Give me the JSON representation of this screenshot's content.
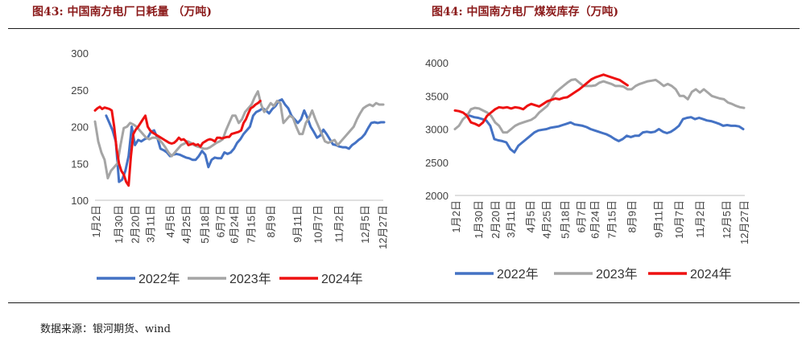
{
  "page": {
    "source": "数据来源：银河期货、wind"
  },
  "chart_data": [
    {
      "type": "line",
      "title": "图43:  中国南方电厂日耗量  （万吨)",
      "xlabel": "",
      "ylabel": "",
      "ylim": [
        100,
        300
      ],
      "yticks": [
        100,
        150,
        200,
        250,
        300
      ],
      "x_range": [
        1,
        362
      ],
      "x_tick_labels": [
        "1月2日",
        "1月30日",
        "2月20日",
        "3月11日",
        "4月5日",
        "4月25日",
        "5月18日",
        "6月7日",
        "6月24日",
        "7月15日",
        "8月9日",
        "9月11日",
        "10月7日",
        "11月2日",
        "12月5日",
        "12月27日"
      ],
      "x_tick_positions": [
        2,
        30,
        51,
        70,
        95,
        115,
        138,
        158,
        175,
        196,
        221,
        254,
        280,
        306,
        339,
        361
      ],
      "grid": false,
      "legend_position": "bottom",
      "series": [
        {
          "name": "2022年",
          "color": "#4472c4",
          "x": [
            15,
            19,
            23,
            27,
            31,
            35,
            39,
            43,
            47,
            51,
            55,
            59,
            63,
            67,
            71,
            75,
            79,
            83,
            87,
            91,
            95,
            99,
            103,
            107,
            111,
            115,
            119,
            123,
            127,
            131,
            135,
            139,
            143,
            147,
            151,
            155,
            159,
            163,
            167,
            171,
            175,
            179,
            183,
            187,
            191,
            195,
            199,
            203,
            207,
            211,
            215,
            219,
            223,
            227,
            231,
            235,
            239,
            243,
            247,
            251,
            255,
            259,
            263,
            267,
            271,
            275,
            279,
            283,
            287,
            291,
            295,
            299,
            303,
            307,
            311,
            315,
            319,
            323,
            327,
            331,
            335,
            339,
            343,
            347,
            351,
            355,
            359,
            363
          ],
          "y": [
            215,
            205,
            195,
            180,
            125,
            128,
            140,
            160,
            200,
            175,
            182,
            180,
            183,
            185,
            193,
            195,
            185,
            170,
            168,
            165,
            160,
            162,
            163,
            162,
            160,
            158,
            157,
            155,
            155,
            160,
            167,
            162,
            145,
            155,
            158,
            157,
            157,
            165,
            163,
            165,
            170,
            178,
            183,
            190,
            195,
            200,
            215,
            220,
            222,
            225,
            222,
            218,
            224,
            228,
            235,
            237,
            230,
            225,
            215,
            210,
            205,
            210,
            222,
            212,
            200,
            193,
            185,
            188,
            196,
            190,
            183,
            176,
            175,
            173,
            172,
            172,
            170,
            175,
            178,
            182,
            185,
            190,
            198,
            205,
            206,
            205,
            206,
            206
          ]
        },
        {
          "name": "2023年",
          "color": "#a5a5a5",
          "x": [
            1,
            5,
            9,
            13,
            17,
            21,
            25,
            29,
            33,
            37,
            41,
            45,
            49,
            53,
            57,
            61,
            65,
            69,
            73,
            77,
            81,
            85,
            89,
            93,
            97,
            101,
            105,
            109,
            113,
            117,
            121,
            125,
            129,
            133,
            137,
            141,
            145,
            149,
            153,
            157,
            161,
            165,
            169,
            173,
            177,
            181,
            185,
            189,
            193,
            197,
            201,
            205,
            209,
            213,
            217,
            221,
            225,
            229,
            233,
            237,
            241,
            245,
            249,
            253,
            257,
            261,
            265,
            269,
            273,
            277,
            281,
            285,
            289,
            293,
            297,
            301,
            305,
            309,
            313,
            317,
            321,
            325,
            329,
            333,
            337,
            341,
            345,
            349,
            353,
            357,
            362
          ],
          "y": [
            207,
            180,
            165,
            155,
            130,
            140,
            145,
            150,
            175,
            198,
            200,
            205,
            203,
            200,
            195,
            190,
            185,
            183,
            185,
            185,
            183,
            178,
            172,
            165,
            160,
            165,
            170,
            175,
            177,
            180,
            178,
            175,
            173,
            172,
            170,
            170,
            172,
            175,
            178,
            180,
            183,
            195,
            205,
            215,
            215,
            205,
            210,
            220,
            225,
            230,
            240,
            248,
            230,
            220,
            225,
            232,
            228,
            235,
            232,
            205,
            210,
            215,
            212,
            200,
            190,
            190,
            205,
            212,
            222,
            210,
            200,
            190,
            180,
            178,
            180,
            182,
            175,
            180,
            185,
            190,
            195,
            200,
            210,
            218,
            225,
            228,
            230,
            228,
            232,
            230,
            230
          ]
        },
        {
          "name": "2024年",
          "color": "#ee1111",
          "x": [
            1,
            4,
            7,
            10,
            13,
            16,
            19,
            22,
            25,
            28,
            31,
            34,
            37,
            40,
            43,
            46,
            49,
            52,
            55,
            58,
            61,
            64,
            67,
            70,
            73,
            76,
            79,
            82,
            85,
            88,
            91,
            94,
            97,
            100,
            103,
            106,
            109,
            112,
            115,
            118,
            121,
            124,
            127,
            130,
            133,
            136,
            139,
            142,
            145,
            148,
            151,
            154,
            157,
            160,
            163,
            166,
            169,
            172,
            175,
            178,
            181,
            184,
            187,
            190,
            193,
            196,
            199,
            202,
            205,
            208
          ],
          "y": [
            222,
            225,
            227,
            224,
            226,
            225,
            224,
            222,
            200,
            170,
            150,
            140,
            135,
            125,
            120,
            160,
            190,
            196,
            200,
            205,
            210,
            215,
            200,
            195,
            192,
            190,
            188,
            186,
            184,
            182,
            180,
            178,
            177,
            178,
            181,
            185,
            182,
            183,
            180,
            175,
            176,
            177,
            175,
            176,
            173,
            178,
            180,
            182,
            183,
            182,
            180,
            185,
            185,
            184,
            185,
            186,
            186,
            190,
            191,
            192,
            193,
            195,
            205,
            210,
            218,
            225,
            227,
            230,
            232,
            235
          ]
        }
      ]
    },
    {
      "type": "line",
      "title": "图44:    中国南方电厂煤炭库存（万吨)",
      "xlabel": "",
      "ylabel": "",
      "ylim": [
        2000,
        4000
      ],
      "yticks": [
        2000,
        2500,
        3000,
        3500,
        4000
      ],
      "x_range": [
        1,
        362
      ],
      "x_tick_labels": [
        "1月2日",
        "1月30日",
        "2月20日",
        "3月11日",
        "4月5日",
        "4月25日",
        "5月18日",
        "6月7日",
        "6月24日",
        "7月15日",
        "8月9日",
        "9月11日",
        "10月7日",
        "11月2日",
        "12月5日",
        "12月27日"
      ],
      "x_tick_positions": [
        2,
        30,
        51,
        70,
        95,
        115,
        138,
        158,
        175,
        196,
        221,
        254,
        280,
        306,
        339,
        361
      ],
      "grid": false,
      "legend_position": "bottom",
      "series": [
        {
          "name": "2022年",
          "color": "#4472c4",
          "x": [
            15,
            20,
            25,
            30,
            35,
            40,
            45,
            50,
            55,
            60,
            65,
            70,
            75,
            80,
            85,
            90,
            95,
            100,
            105,
            110,
            115,
            120,
            125,
            130,
            135,
            140,
            145,
            150,
            155,
            160,
            165,
            170,
            175,
            180,
            185,
            190,
            195,
            200,
            205,
            210,
            215,
            220,
            225,
            230,
            235,
            240,
            245,
            250,
            255,
            260,
            265,
            270,
            275,
            280,
            285,
            290,
            295,
            300,
            305,
            310,
            315,
            320,
            325,
            330,
            335,
            340,
            345,
            350,
            355,
            360
          ],
          "y": [
            3220,
            3200,
            3180,
            3170,
            3150,
            3130,
            3050,
            2850,
            2830,
            2820,
            2800,
            2700,
            2650,
            2750,
            2800,
            2850,
            2900,
            2950,
            2980,
            2990,
            3000,
            3020,
            3030,
            3040,
            3060,
            3080,
            3100,
            3070,
            3060,
            3050,
            3030,
            3000,
            2980,
            2960,
            2940,
            2920,
            2890,
            2850,
            2820,
            2850,
            2900,
            2880,
            2900,
            2900,
            2950,
            2960,
            2950,
            2960,
            3000,
            2960,
            2940,
            2960,
            3000,
            3050,
            3150,
            3170,
            3180,
            3150,
            3170,
            3150,
            3130,
            3120,
            3100,
            3080,
            3050,
            3060,
            3050,
            3050,
            3040,
            3000
          ]
        },
        {
          "name": "2023年",
          "color": "#a5a5a5",
          "x": [
            1,
            6,
            11,
            16,
            21,
            26,
            31,
            36,
            41,
            46,
            51,
            56,
            61,
            66,
            71,
            76,
            81,
            86,
            91,
            96,
            101,
            106,
            111,
            116,
            121,
            126,
            131,
            136,
            141,
            146,
            151,
            156,
            161,
            166,
            171,
            176,
            181,
            186,
            191,
            196,
            201,
            206,
            211,
            216,
            221,
            226,
            231,
            236,
            241,
            246,
            251,
            256,
            261,
            266,
            271,
            276,
            281,
            286,
            291,
            296,
            301,
            306,
            311,
            316,
            321,
            326,
            331,
            336,
            341,
            346,
            351,
            356,
            361
          ],
          "y": [
            3000,
            3050,
            3150,
            3200,
            3300,
            3320,
            3310,
            3280,
            3250,
            3200,
            3100,
            3050,
            2950,
            2950,
            3000,
            3050,
            3080,
            3100,
            3120,
            3140,
            3180,
            3250,
            3300,
            3350,
            3450,
            3550,
            3600,
            3650,
            3700,
            3740,
            3750,
            3700,
            3650,
            3650,
            3650,
            3660,
            3700,
            3720,
            3700,
            3680,
            3650,
            3650,
            3640,
            3600,
            3600,
            3650,
            3680,
            3700,
            3720,
            3730,
            3740,
            3700,
            3650,
            3680,
            3650,
            3600,
            3500,
            3500,
            3450,
            3560,
            3600,
            3550,
            3600,
            3550,
            3500,
            3480,
            3460,
            3450,
            3400,
            3380,
            3350,
            3330,
            3320
          ]
        },
        {
          "name": "2024年",
          "color": "#ee1111",
          "x": [
            1,
            6,
            11,
            16,
            21,
            26,
            31,
            36,
            41,
            46,
            51,
            56,
            61,
            66,
            71,
            76,
            81,
            86,
            91,
            96,
            101,
            106,
            111,
            116,
            121,
            126,
            131,
            136,
            141,
            146,
            151,
            156,
            161,
            166,
            171,
            176,
            181,
            186,
            191,
            196,
            201,
            206,
            211,
            216
          ],
          "y": [
            3280,
            3270,
            3250,
            3200,
            3100,
            3080,
            3050,
            3100,
            3200,
            3250,
            3300,
            3330,
            3320,
            3330,
            3310,
            3330,
            3320,
            3300,
            3350,
            3380,
            3360,
            3340,
            3380,
            3420,
            3440,
            3460,
            3450,
            3470,
            3480,
            3520,
            3560,
            3600,
            3650,
            3700,
            3750,
            3780,
            3800,
            3820,
            3800,
            3780,
            3760,
            3740,
            3700,
            3660
          ]
        }
      ]
    }
  ]
}
